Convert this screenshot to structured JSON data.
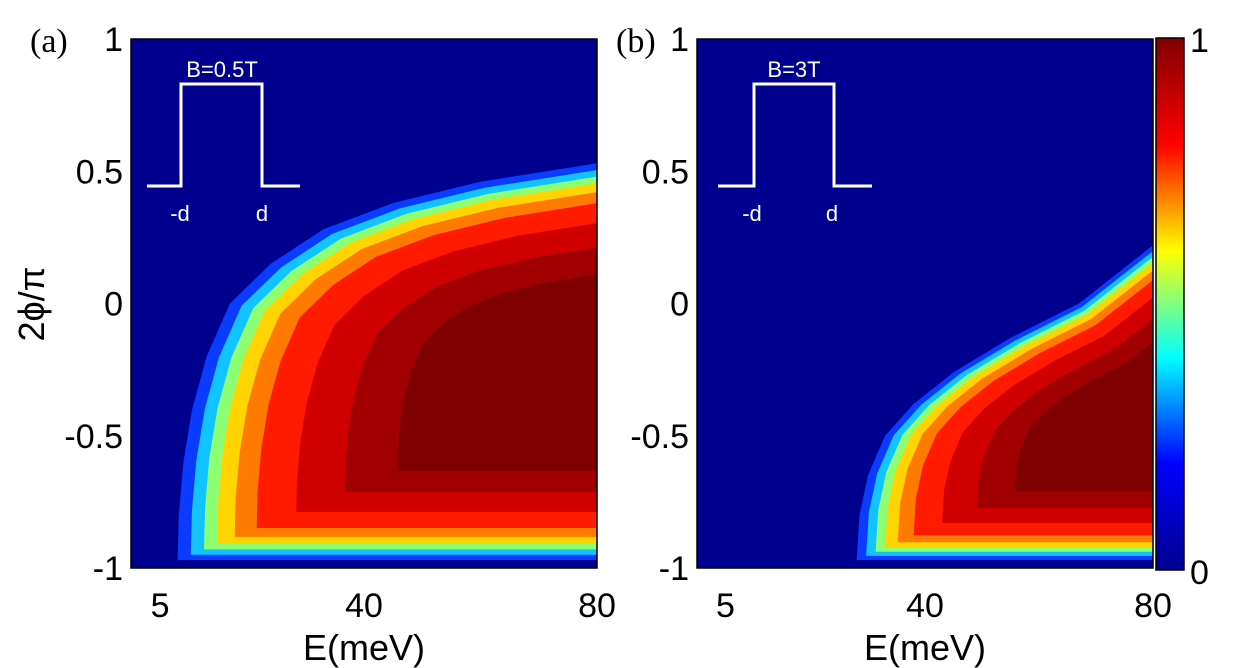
{
  "chart_data": [
    {
      "type": "heatmap",
      "panel_label": "(a)",
      "inset": {
        "title": "B=0.5T",
        "left_label": "-d",
        "right_label": "d"
      },
      "xlabel": "E(meV)",
      "ylabel": "2ϕ/π",
      "xlim": [
        0,
        80
      ],
      "ylim": [
        -1,
        1
      ],
      "x_ticks": [
        {
          "value": 5,
          "label": "5"
        },
        {
          "value": 40,
          "label": "40"
        },
        {
          "value": 80,
          "label": "80"
        }
      ],
      "y_ticks": [
        {
          "value": 1,
          "label": "1"
        },
        {
          "value": 0.5,
          "label": "0.5"
        },
        {
          "value": 0,
          "label": "0"
        },
        {
          "value": -0.5,
          "label": "-0.5"
        },
        {
          "value": -1,
          "label": "-1"
        }
      ],
      "boundary": [
        {
          "E": 8.0,
          "phi": -0.97
        },
        {
          "E": 8.2,
          "phi": -0.8
        },
        {
          "E": 9.0,
          "phi": -0.6
        },
        {
          "E": 10.5,
          "phi": -0.4
        },
        {
          "E": 13.0,
          "phi": -0.2
        },
        {
          "E": 17.0,
          "phi": 0.0
        },
        {
          "E": 24.0,
          "phi": 0.15
        },
        {
          "E": 33.0,
          "phi": 0.28
        },
        {
          "E": 45.0,
          "phi": 0.38
        },
        {
          "E": 60.0,
          "phi": 0.46
        },
        {
          "E": 80.0,
          "phi": 0.53
        }
      ],
      "bottom_edge_phi": -0.97
    },
    {
      "type": "heatmap",
      "panel_label": "(b)",
      "inset": {
        "title": "B=3T",
        "left_label": "-d",
        "right_label": "d"
      },
      "xlabel": "E(meV)",
      "ylabel": "",
      "xlim": [
        0,
        80
      ],
      "ylim": [
        -1,
        1
      ],
      "x_ticks": [
        {
          "value": 5,
          "label": "5"
        },
        {
          "value": 40,
          "label": "40"
        },
        {
          "value": 80,
          "label": "80"
        }
      ],
      "y_ticks": [
        {
          "value": 1,
          "label": "1"
        },
        {
          "value": 0.5,
          "label": "0.5"
        },
        {
          "value": 0,
          "label": "0"
        },
        {
          "value": -0.5,
          "label": "-0.5"
        },
        {
          "value": -1,
          "label": "-1"
        }
      ],
      "boundary": [
        {
          "E": 28.0,
          "phi": -0.97
        },
        {
          "E": 28.5,
          "phi": -0.8
        },
        {
          "E": 30.0,
          "phi": -0.65
        },
        {
          "E": 33.0,
          "phi": -0.5
        },
        {
          "E": 38.0,
          "phi": -0.38
        },
        {
          "E": 45.0,
          "phi": -0.26
        },
        {
          "E": 55.0,
          "phi": -0.13
        },
        {
          "E": 67.0,
          "phi": 0.0
        },
        {
          "E": 80.0,
          "phi": 0.22
        }
      ],
      "bottom_edge_phi": -0.97
    }
  ],
  "colorbar": {
    "min_label": "0",
    "max_label": "1",
    "stops": [
      "#00008f",
      "#0000ff",
      "#00ffff",
      "#ffff00",
      "#ff0000",
      "#800000"
    ]
  },
  "colors": {
    "background": "#00008f",
    "peak": "#7f0000"
  }
}
